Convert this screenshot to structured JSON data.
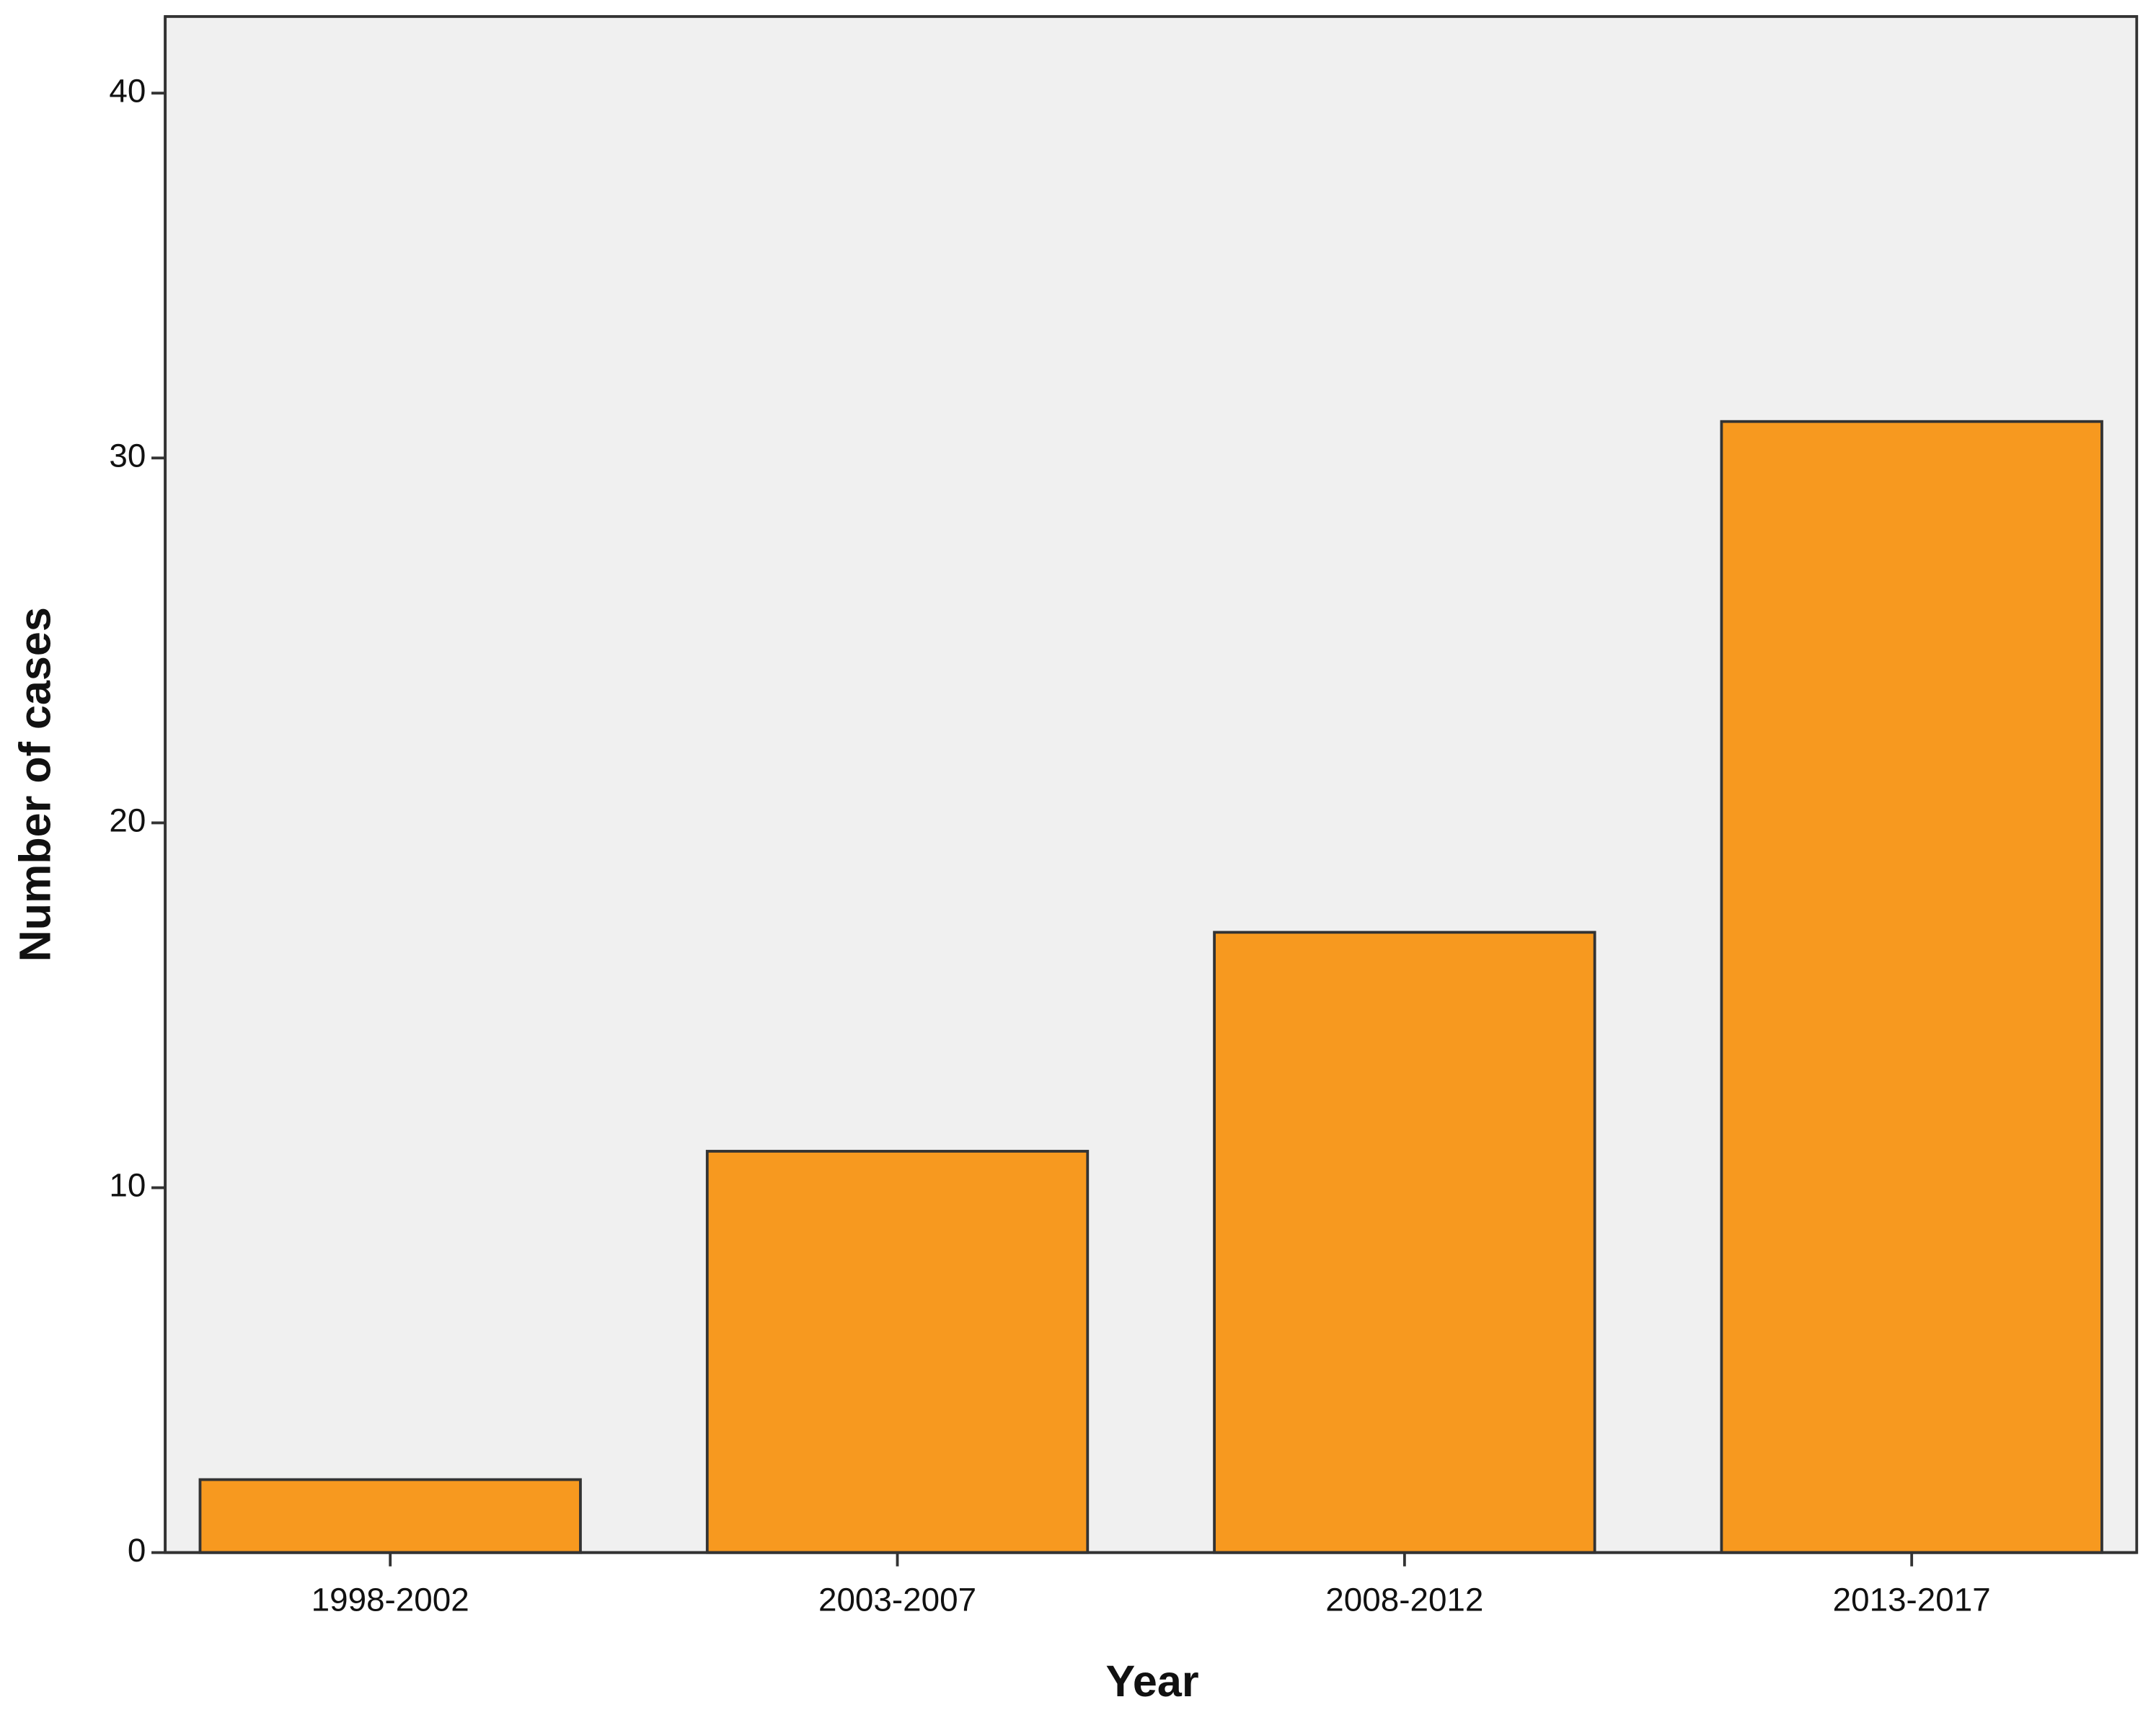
{
  "chart_data": {
    "type": "bar",
    "x_label": "Year",
    "y_label": "Number of cases",
    "categories": [
      "1998-2002",
      "2003-2007",
      "2008-2012",
      "2013-2017"
    ],
    "values": [
      2,
      11,
      17,
      31
    ],
    "color": "#f7991f",
    "ylim": [
      0,
      42.1
    ],
    "yticks": [
      0,
      10,
      20,
      30,
      40
    ],
    "grid": false
  }
}
